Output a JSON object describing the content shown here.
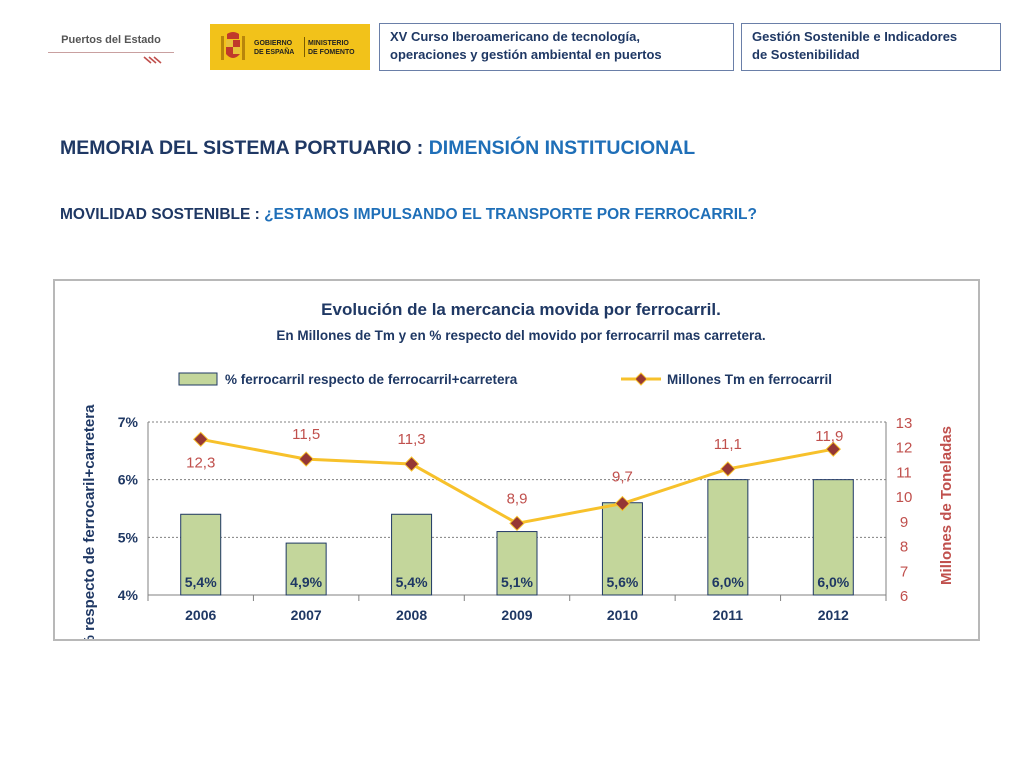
{
  "header": {
    "logo_text": "Puertos del Estado",
    "gov_line1": "GOBIERNO",
    "gov_line2": "DE ESPAÑA",
    "min_line1": "MINISTERIO",
    "min_line2": "DE FOMENTO",
    "course_line1": "XV Curso Iberoamericano de tecnología,",
    "course_line2": "operaciones y gestión ambiental en puertos",
    "topic_line1": "Gestión Sostenible e Indicadores",
    "topic_line2": "de Sostenibilidad"
  },
  "heading1": {
    "prefix": "MEMORIA DEL SISTEMA PORTUARIO : ",
    "highlight": "DIMENSIÓN INSTITUCIONAL"
  },
  "heading2": {
    "prefix": "MOVILIDAD SOSTENIBLE : ",
    "highlight": "¿ESTAMOS IMPULSANDO EL TRANSPORTE POR FERROCARRIL?"
  },
  "chart_data": {
    "type": "bar",
    "title": "Evolución de la mercancia movida por ferrocarril.",
    "subtitle": "En Millones de Tm y en % respecto del movido por ferrocarril mas carretera.",
    "categories": [
      "2006",
      "2007",
      "2008",
      "2009",
      "2010",
      "2011",
      "2012"
    ],
    "series": [
      {
        "name": "% ferrocarril respecto de ferrocarril+carretera",
        "type": "bar",
        "axis": "left",
        "values": [
          5.4,
          4.9,
          5.4,
          5.1,
          5.6,
          6.0,
          6.0
        ],
        "labels": [
          "5,4%",
          "4,9%",
          "5,4%",
          "5,1%",
          "5,6%",
          "6,0%",
          "6,0%"
        ]
      },
      {
        "name": "Millones Tm en ferrocarril",
        "type": "line",
        "axis": "right",
        "values": [
          12.3,
          11.5,
          11.3,
          8.9,
          9.7,
          11.1,
          11.9
        ],
        "labels": [
          "12,3",
          "11,5",
          "11,3",
          "8,9",
          "9,7",
          "11,1",
          "11,9"
        ]
      }
    ],
    "ylabel": "% respecto de ferrocaril+carretera",
    "y2label": "Millones de Toneladas",
    "ylim": [
      4,
      7
    ],
    "yticks": [
      "4%",
      "5%",
      "6%",
      "7%"
    ],
    "y2lim": [
      6,
      13
    ],
    "y2ticks": [
      "6",
      "7",
      "8",
      "9",
      "10",
      "11",
      "12",
      "13"
    ],
    "legend_position": "top",
    "grid": "horizontal dotted",
    "colors": {
      "bar_fill": "#c3d69b",
      "bar_stroke": "#1f3864",
      "line": "#f7c12b",
      "marker": "#953735",
      "right_axis": "#c0504d",
      "label": "#1f3864"
    }
  }
}
